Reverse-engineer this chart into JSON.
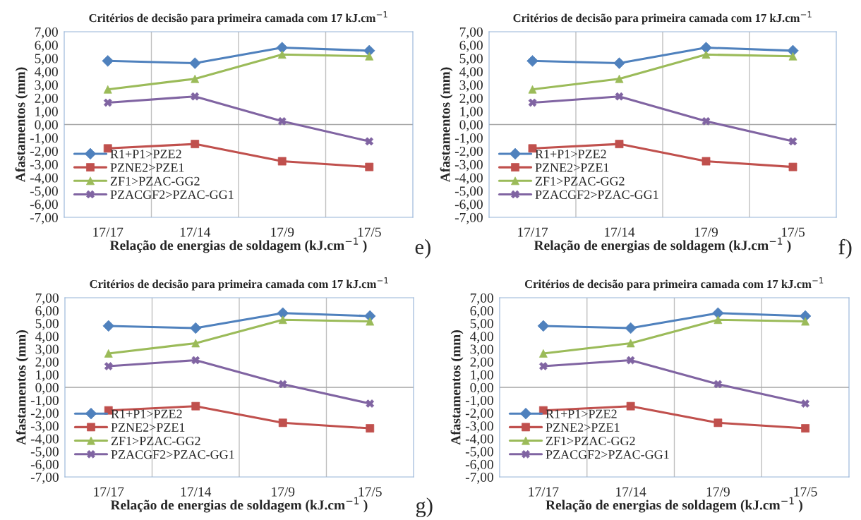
{
  "chart_data": [
    {
      "type": "line",
      "title": "Critérios de decisão para primeira camada com 17 kJ.cm$^{−1}$",
      "xlabel": "Relação de energias de soldagem (kJ.cm$^{−1}$ )",
      "ylabel": "Afastamentos (mm)",
      "annotations": [
        "e)"
      ],
      "categories": [
        "17/17",
        "17/14",
        "17/9",
        "17/5"
      ],
      "series": [
        {
          "name": "R1+P1>PZE2",
          "color": "#4f81bd",
          "marker": "diamond",
          "values": [
            4.8,
            4.63,
            5.8,
            5.57
          ]
        },
        {
          "name": "PZNE2>PZE1",
          "color": "#c0504d",
          "marker": "square",
          "values": [
            -1.8,
            -1.47,
            -2.77,
            -3.2
          ]
        },
        {
          "name": "ZF1>PZAC-GG2",
          "color": "#9bbb59",
          "marker": "triangle",
          "values": [
            2.65,
            3.45,
            5.28,
            5.15
          ]
        },
        {
          "name": "PZACGF2>PZAC-GG1",
          "color": "#8064a2",
          "marker": "cross",
          "values": [
            1.65,
            2.12,
            0.25,
            -1.27
          ]
        }
      ],
      "ylim": [
        -7,
        7
      ],
      "yticks": [
        {
          "value": -7,
          "label": "-7,00"
        },
        {
          "value": -6,
          "label": "-6,00"
        },
        {
          "value": -5,
          "label": "-5,00"
        },
        {
          "value": -4,
          "label": "-4,00"
        },
        {
          "value": -3,
          "label": "-3,00"
        },
        {
          "value": -2,
          "label": "-2,00"
        },
        {
          "value": -1,
          "label": "-1,00"
        },
        {
          "value": 0,
          "label": "0,00"
        },
        {
          "value": 1,
          "label": "1,00"
        },
        {
          "value": 2,
          "label": "2,00"
        },
        {
          "value": 3,
          "label": "3,00"
        },
        {
          "value": 4,
          "label": "4,00"
        },
        {
          "value": 5,
          "label": "5,00"
        },
        {
          "value": 6,
          "label": "6,00"
        },
        {
          "value": 7,
          "label": "7,00"
        }
      ],
      "ref_lines": [
        {
          "axis": "y",
          "value": 0,
          "color": "#a6a6a6"
        }
      ],
      "grid": "x",
      "legend": "bottom left"
    },
    {
      "type": "line",
      "title": "Critérios de decisão para primeira camada com 17 kJ.cm$^{−1}$",
      "xlabel": "Relação de energias de soldagem (kJ.cm$^{−1}$ )",
      "ylabel": "Afastamentos (mm)",
      "annotations": [
        "f)"
      ],
      "categories": [
        "17/17",
        "17/14",
        "17/9",
        "17/5"
      ],
      "series": [
        {
          "name": "R1+P1>PZE2",
          "color": "#4f81bd",
          "marker": "diamond",
          "values": [
            4.8,
            4.63,
            5.8,
            5.57
          ]
        },
        {
          "name": "PZNE2>PZE1",
          "color": "#c0504d",
          "marker": "square",
          "values": [
            -1.8,
            -1.47,
            -2.77,
            -3.2
          ]
        },
        {
          "name": "ZF1>PZAC-GG2",
          "color": "#9bbb59",
          "marker": "triangle",
          "values": [
            2.65,
            3.45,
            5.28,
            5.15
          ]
        },
        {
          "name": "PZACGF2>PZAC-GG1",
          "color": "#8064a2",
          "marker": "cross",
          "values": [
            1.65,
            2.12,
            0.25,
            -1.27
          ]
        }
      ],
      "ylim": [
        -7,
        7
      ],
      "yticks": [
        {
          "value": -7,
          "label": "-7,00"
        },
        {
          "value": -6,
          "label": "-6,00"
        },
        {
          "value": -5,
          "label": "-5,00"
        },
        {
          "value": -4,
          "label": "-4,00"
        },
        {
          "value": -3,
          "label": "-3,00"
        },
        {
          "value": -2,
          "label": "-2,00"
        },
        {
          "value": -1,
          "label": "-1,00"
        },
        {
          "value": 0,
          "label": "0,00"
        },
        {
          "value": 1,
          "label": "1,00"
        },
        {
          "value": 2,
          "label": "2,00"
        },
        {
          "value": 3,
          "label": "3,00"
        },
        {
          "value": 4,
          "label": "4,00"
        },
        {
          "value": 5,
          "label": "5,00"
        },
        {
          "value": 6,
          "label": "6,00"
        },
        {
          "value": 7,
          "label": "7,00"
        }
      ],
      "ref_lines": [
        {
          "axis": "y",
          "value": 0,
          "color": "#a6a6a6"
        }
      ],
      "grid": "x",
      "legend": "bottom left"
    },
    {
      "type": "line",
      "title": "Critérios de decisão para primeira camada com 17 kJ.cm$^{−1}$",
      "xlabel": "Relação de energias de soldagem (kJ.cm$^{−1}$ )",
      "ylabel": "Afastamentos (mm)",
      "annotations": [
        "g)"
      ],
      "categories": [
        "17/17",
        "17/14",
        "17/9",
        "17/5"
      ],
      "series": [
        {
          "name": "R1+P1>PZE2",
          "color": "#4f81bd",
          "marker": "diamond",
          "values": [
            4.8,
            4.63,
            5.8,
            5.57
          ]
        },
        {
          "name": "PZNE2>PZE1",
          "color": "#c0504d",
          "marker": "square",
          "values": [
            -1.8,
            -1.47,
            -2.77,
            -3.2
          ]
        },
        {
          "name": "ZF1>PZAC-GG2",
          "color": "#9bbb59",
          "marker": "triangle",
          "values": [
            2.65,
            3.45,
            5.28,
            5.15
          ]
        },
        {
          "name": "PZACGF2>PZAC-GG1",
          "color": "#8064a2",
          "marker": "cross",
          "values": [
            1.65,
            2.12,
            0.25,
            -1.27
          ]
        }
      ],
      "ylim": [
        -7,
        7
      ],
      "yticks": [
        {
          "value": -7,
          "label": "-7,00"
        },
        {
          "value": -6,
          "label": "-6,00"
        },
        {
          "value": -5,
          "label": "-5,00"
        },
        {
          "value": -4,
          "label": "-4,00"
        },
        {
          "value": -3,
          "label": "-3,00"
        },
        {
          "value": -2,
          "label": "-2,00"
        },
        {
          "value": -1,
          "label": "-1,00"
        },
        {
          "value": 0,
          "label": "0,00"
        },
        {
          "value": 1,
          "label": "1,00"
        },
        {
          "value": 2,
          "label": "2,00"
        },
        {
          "value": 3,
          "label": "3,00"
        },
        {
          "value": 4,
          "label": "4,00"
        },
        {
          "value": 5,
          "label": "5,00"
        },
        {
          "value": 6,
          "label": "6,00"
        },
        {
          "value": 7,
          "label": "7,00"
        }
      ],
      "ref_lines": [
        {
          "axis": "y",
          "value": 0,
          "color": "#a6a6a6"
        }
      ],
      "grid": "x",
      "legend": "bottom left"
    },
    {
      "type": "line",
      "title": "Critérios de decisão para primeira camada com 17 kJ.cm$^{−1}$",
      "xlabel": "Relação de energias de soldagem (kJ.cm$^{−1}$ )",
      "ylabel": "Afastamentos (mm)",
      "categories": [
        "17/17",
        "17/14",
        "17/9",
        "17/5"
      ],
      "series": [
        {
          "name": "R1+P1>PZE2",
          "color": "#4f81bd",
          "marker": "diamond",
          "values": [
            4.8,
            4.63,
            5.8,
            5.57
          ]
        },
        {
          "name": "PZNE2>PZE1",
          "color": "#c0504d",
          "marker": "square",
          "values": [
            -1.8,
            -1.47,
            -2.77,
            -3.2
          ]
        },
        {
          "name": "ZF1>PZAC-GG2",
          "color": "#9bbb59",
          "marker": "triangle",
          "values": [
            2.65,
            3.45,
            5.28,
            5.15
          ]
        },
        {
          "name": "PZACGF2>PZAC-GG1",
          "color": "#8064a2",
          "marker": "cross",
          "values": [
            1.65,
            2.12,
            0.25,
            -1.27
          ]
        }
      ],
      "ylim": [
        -7,
        7
      ],
      "yticks": [
        {
          "value": -7,
          "label": "-7,00"
        },
        {
          "value": -6,
          "label": "-6,00"
        },
        {
          "value": -5,
          "label": "-5,00"
        },
        {
          "value": -4,
          "label": "-4,00"
        },
        {
          "value": -3,
          "label": "-3,00"
        },
        {
          "value": -2,
          "label": "-2,00"
        },
        {
          "value": -1,
          "label": "-1,00"
        },
        {
          "value": 0,
          "label": "0,00"
        },
        {
          "value": 1,
          "label": "1,00"
        },
        {
          "value": 2,
          "label": "2,00"
        },
        {
          "value": 3,
          "label": "3,00"
        },
        {
          "value": 4,
          "label": "4,00"
        },
        {
          "value": 5,
          "label": "5,00"
        },
        {
          "value": 6,
          "label": "6,00"
        },
        {
          "value": 7,
          "label": "7,00"
        }
      ],
      "ref_lines": [
        {
          "axis": "y",
          "value": 0,
          "color": "#a6a6a6"
        }
      ],
      "grid": "x",
      "legend": "bottom left"
    }
  ]
}
